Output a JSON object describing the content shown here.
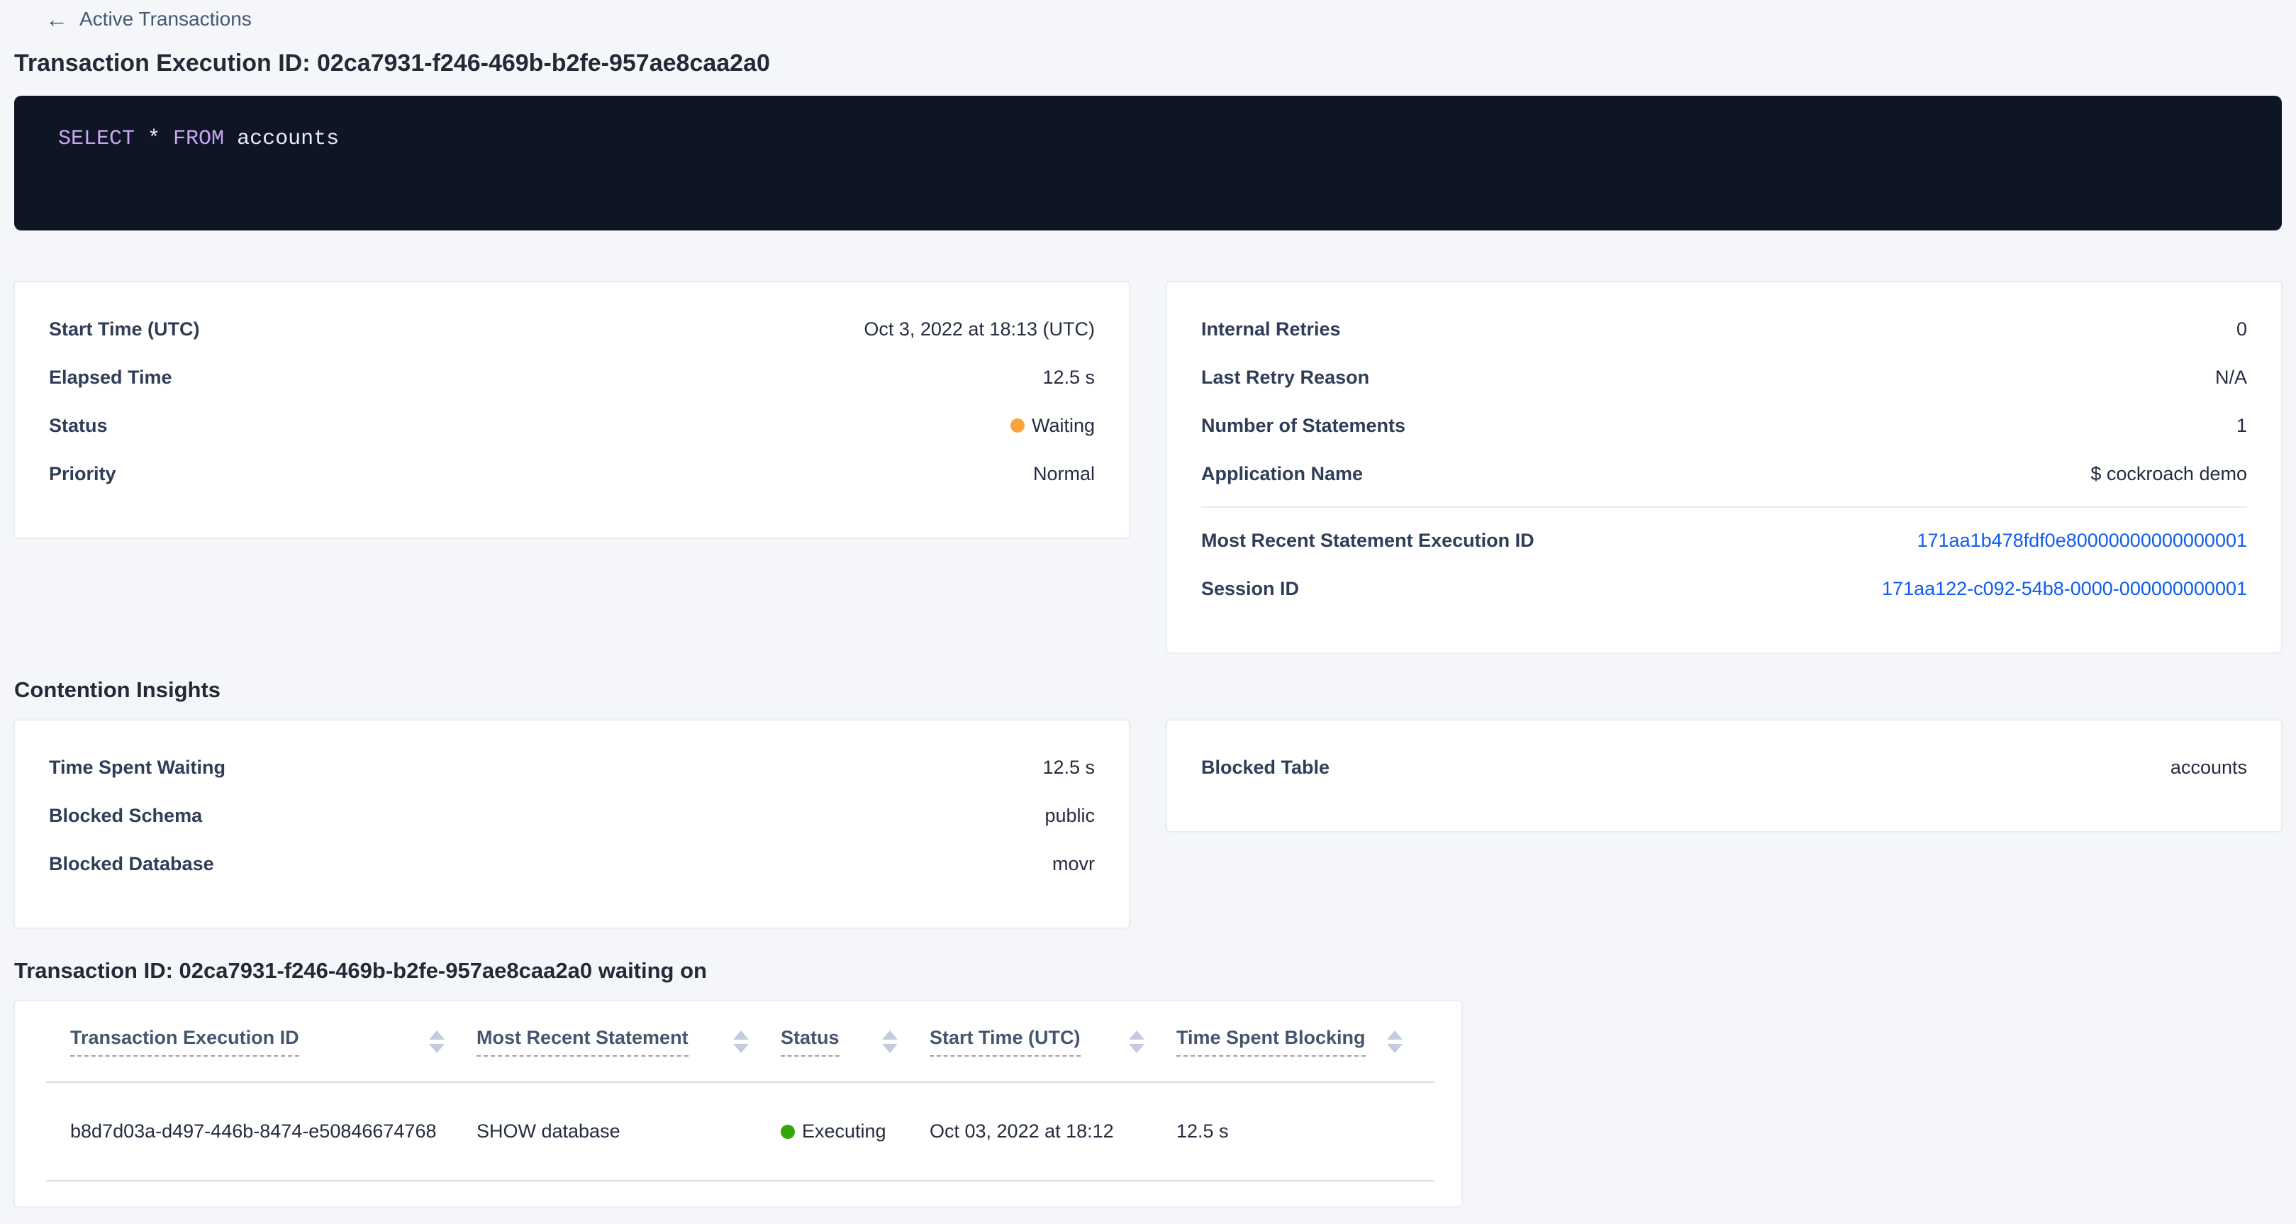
{
  "colors": {
    "page_background": "#f4f6fa",
    "link_blue": "#0f5cf0",
    "waiting_orange": "#f9a53b",
    "executing_green": "#36a806",
    "sql_background": "#0e1626",
    "sql_keyword": "#c8a6f2",
    "sql_plain": "#e8edf4"
  },
  "breadcrumb": {
    "back_icon": "←",
    "label": "Active Transactions"
  },
  "page_title": "Transaction Execution ID: 02ca7931-f246-469b-b2fe-957ae8caa2a0",
  "sql": {
    "keyword_select": "SELECT",
    "star": " * ",
    "keyword_from": "FROM",
    "table_ref": " accounts"
  },
  "summary_left": {
    "rows": [
      {
        "label": "Start Time (UTC)",
        "value": "Oct 3, 2022 at 18:13 (UTC)"
      },
      {
        "label": "Elapsed Time",
        "value": "12.5 s"
      },
      {
        "label": "Status",
        "value": "Waiting"
      },
      {
        "label": "Priority",
        "value": "Normal"
      }
    ]
  },
  "summary_right": {
    "rows": [
      {
        "label": "Internal Retries",
        "value": "0"
      },
      {
        "label": "Last Retry Reason",
        "value": "N/A"
      },
      {
        "label": "Number of Statements",
        "value": "1"
      },
      {
        "label": "Application Name",
        "value": "$ cockroach demo"
      },
      {
        "label": "Most Recent Statement Execution ID",
        "value": "171aa1b478fdf0e80000000000000001"
      },
      {
        "label": "Session ID",
        "value": "171aa122-c092-54b8-0000-000000000001"
      }
    ]
  },
  "contention": {
    "heading": "Contention Insights",
    "left_rows": [
      {
        "label": "Time Spent Waiting",
        "value": "12.5 s"
      },
      {
        "label": "Blocked Schema",
        "value": "public"
      },
      {
        "label": "Blocked Database",
        "value": "movr"
      }
    ],
    "right_rows": [
      {
        "label": "Blocked Table",
        "value": "accounts"
      }
    ]
  },
  "waiting_table": {
    "heading": "Transaction ID: 02ca7931-f246-469b-b2fe-957ae8caa2a0 waiting on",
    "columns": [
      "Transaction Execution ID",
      "Most Recent Statement",
      "Status",
      "Start Time (UTC)",
      "Time Spent Blocking"
    ],
    "rows": [
      {
        "transaction_execution_id": "b8d7d03a-d497-446b-8474-e50846674768",
        "most_recent_statement": "SHOW database",
        "status": "Executing",
        "start_time": "Oct 03, 2022 at 18:12",
        "time_spent_blocking": "12.5 s"
      }
    ]
  }
}
